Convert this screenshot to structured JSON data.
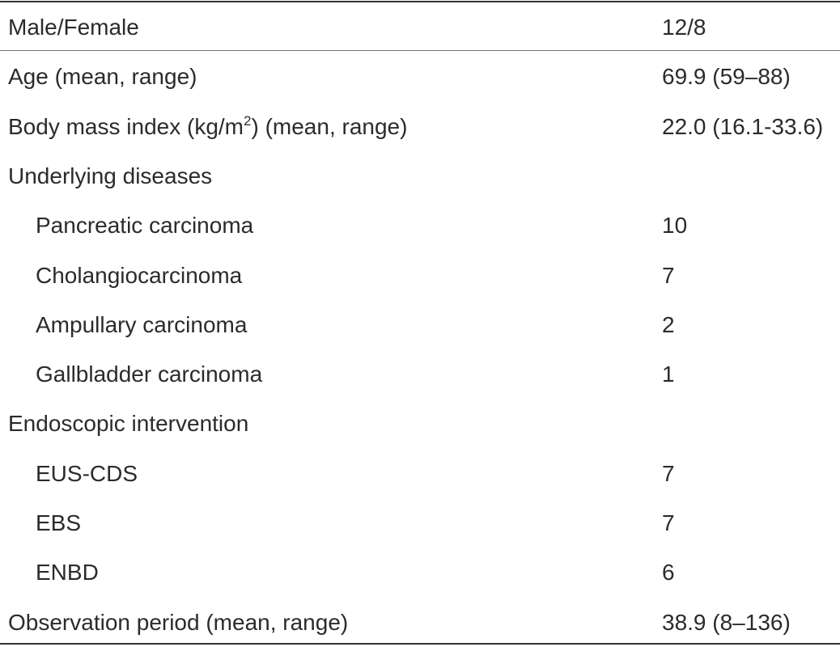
{
  "table": {
    "rows": [
      {
        "label": "Male/Female",
        "value": "12/8"
      },
      {
        "label": "Age (mean, range)",
        "value": "69.9 (59–88)"
      },
      {
        "label_parts": [
          "Body mass index (kg/m",
          "2",
          ") (mean, range)"
        ],
        "value": "22.0 (16.1-33.6)"
      },
      {
        "label": "Underlying diseases",
        "items": [
          {
            "label": "Pancreatic carcinoma",
            "value": 10
          },
          {
            "label": "Cholangiocarcinoma",
            "value": 7
          },
          {
            "label": "Ampullary carcinoma",
            "value": 2
          },
          {
            "label": "Gallbladder carcinoma",
            "value": 1
          }
        ]
      },
      {
        "label": "Endoscopic intervention",
        "items": [
          {
            "label": "EUS-CDS",
            "value": 7
          },
          {
            "label": "EBS",
            "value": 7
          },
          {
            "label": "ENBD",
            "value": 6
          }
        ]
      },
      {
        "label": "Observation period (mean, range)",
        "value": "38.9 (8–136)"
      }
    ]
  }
}
